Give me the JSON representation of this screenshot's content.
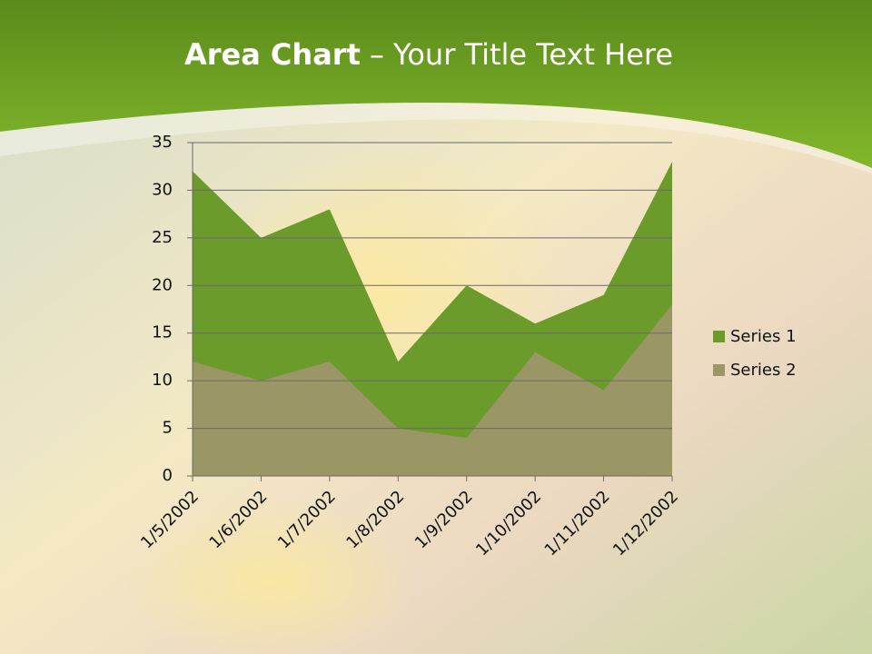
{
  "chart_data": {
    "type": "area",
    "title": {
      "bold": "Area Chart",
      "rest": "– Your Title Text Here"
    },
    "categories": [
      "1/5/2002",
      "1/6/2002",
      "1/7/2002",
      "1/8/2002",
      "1/9/2002",
      "1/10/2002",
      "1/11/2002",
      "1/12/2002"
    ],
    "series": [
      {
        "name": "Series 1",
        "color": "#6b9b2a",
        "values": [
          32,
          25,
          28,
          12,
          20,
          16,
          19,
          33
        ]
      },
      {
        "name": "Series 2",
        "color": "#9a9666",
        "values": [
          12,
          10,
          12,
          5,
          4,
          13,
          9,
          18
        ]
      }
    ],
    "ylim": [
      0,
      35
    ],
    "yticks": [
      0,
      5,
      10,
      15,
      20,
      25,
      30,
      35
    ],
    "grid": true,
    "legend": "right"
  }
}
